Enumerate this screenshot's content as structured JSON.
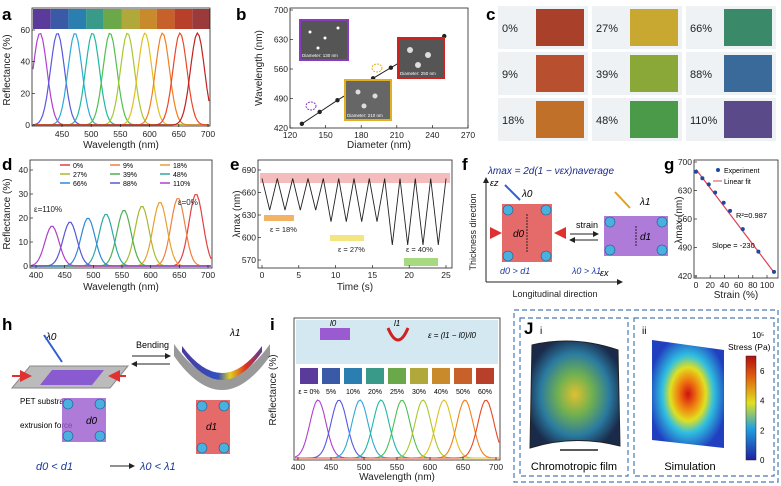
{
  "figure": {
    "panel_letters": [
      "a",
      "b",
      "c",
      "d",
      "e",
      "f",
      "g",
      "h",
      "i",
      "J"
    ],
    "sub_letters": [
      "i",
      "ii"
    ]
  },
  "panel_a": {
    "ylabel": "Reflectance (%)",
    "xlabel": "Wavelength (nm)",
    "yticks": [
      "0",
      "20",
      "40",
      "60"
    ],
    "xticks": [
      "450",
      "500",
      "550",
      "600",
      "650",
      "700"
    ],
    "swatch_colors": [
      "#5a3a9a",
      "#3a5aa8",
      "#2a7fb0",
      "#3a9a8a",
      "#6aa84a",
      "#b0a83a",
      "#c88a2a",
      "#c8602a",
      "#b8402a",
      "#9a3a3a"
    ],
    "curve_colors": [
      "#b040d0",
      "#5858e0",
      "#30a8d8",
      "#20b8a0",
      "#50c050",
      "#a8c830",
      "#e0c020",
      "#f08020",
      "#e84828",
      "#c02020"
    ]
  },
  "panel_b": {
    "ylabel": "Wavelength (nm)",
    "xlabel": "Diameter (nm)",
    "yticks": [
      "420",
      "490",
      "560",
      "630",
      "700"
    ],
    "xticks": [
      "120",
      "150",
      "180",
      "210",
      "240",
      "270"
    ],
    "insets": [
      "Diameter: 130 nm",
      "Diameter: 210 nm",
      "Diameter: 250 nm"
    ]
  },
  "panel_c": {
    "strains": [
      "0%",
      "27%",
      "66%",
      "9%",
      "39%",
      "88%",
      "18%",
      "48%",
      "110%"
    ],
    "colors": [
      "#a8402a",
      "#c8a830",
      "#3a8a6a",
      "#b85030",
      "#8aa838",
      "#3a6a9a",
      "#c07028",
      "#4a9a4a",
      "#5a4a8a"
    ]
  },
  "panel_d": {
    "ylabel": "Reflectance (%)",
    "xlabel": "Wavelength (nm)",
    "yticks": [
      "0",
      "10",
      "20",
      "30",
      "40"
    ],
    "xticks": [
      "400",
      "450",
      "500",
      "550",
      "600",
      "650",
      "700"
    ],
    "legend": [
      "0%",
      "9%",
      "18%",
      "27%",
      "39%",
      "48%",
      "66%",
      "88%",
      "110%"
    ],
    "legend_colors": [
      "#e04040",
      "#f08040",
      "#e8a030",
      "#a8b830",
      "#50b050",
      "#30a8a8",
      "#3088d8",
      "#5858d8",
      "#b040c8"
    ],
    "annot_left": "ε=110%",
    "annot_right": "ε=0%"
  },
  "panel_e": {
    "ylabel": "λmax (nm)",
    "xlabel": "Time (s)",
    "yticks": [
      "570",
      "600",
      "630",
      "660",
      "690"
    ],
    "xticks": [
      "0",
      "5",
      "10",
      "15",
      "20",
      "25"
    ],
    "annots": [
      "ε = 18%",
      "ε = 27%",
      "ε = 40%"
    ]
  },
  "panel_f": {
    "equation": "λmax = 2d(1 − νεx)naverage",
    "y_axis": "Thickness direction",
    "x_axis": "Longitudinal direction",
    "strain": "strain",
    "cond1": "d0 > d1",
    "cond2": "λ0 > λ1",
    "ez": "εz",
    "ex": "εx",
    "d0": "d0",
    "d1": "d1",
    "l0": "λ0",
    "l1": "λ1"
  },
  "panel_g": {
    "ylabel": "λmax (nm)",
    "xlabel": "Strain (%)",
    "yticks": [
      "420",
      "490",
      "560",
      "630",
      "700"
    ],
    "xticks": [
      "0",
      "20",
      "40",
      "60",
      "80",
      "100"
    ],
    "legend": [
      "Experiment",
      "Linear fit"
    ],
    "r2": "R²=0.987",
    "slope": "Slope = -230"
  },
  "panel_h": {
    "bending": "Bending",
    "pet": "PET substrate",
    "force": "extrusion force",
    "cond1": "d0 < d1",
    "cond2": "λ0 < λ1",
    "l0": "λ0",
    "l1": "λ1",
    "d0": "d0",
    "d1": "d1"
  },
  "panel_i": {
    "ylabel": "Reflectance (%)",
    "xlabel": "Wavelength (nm)",
    "xticks": [
      "400",
      "450",
      "500",
      "550",
      "600",
      "650",
      "700"
    ],
    "strain_labels": [
      "ε = 0%",
      "5%",
      "10%",
      "20%",
      "25%",
      "30%",
      "40%",
      "50%",
      "60%"
    ],
    "formula": "ε = (l1 − l0)/l0",
    "l0": "l0",
    "l1": "l1",
    "curve_colors": [
      "#b040d0",
      "#5858e0",
      "#30a8d8",
      "#20b8a0",
      "#50c050",
      "#a8c830",
      "#e0c020",
      "#f08020",
      "#e84828"
    ]
  },
  "panel_j": {
    "left_caption": "Chromotropic film",
    "right_caption": "Simulation",
    "colorbar_title": "Stress (Pa)",
    "exponent": "10⁵",
    "colorbar_ticks": [
      "0",
      "2",
      "4",
      "6"
    ]
  }
}
